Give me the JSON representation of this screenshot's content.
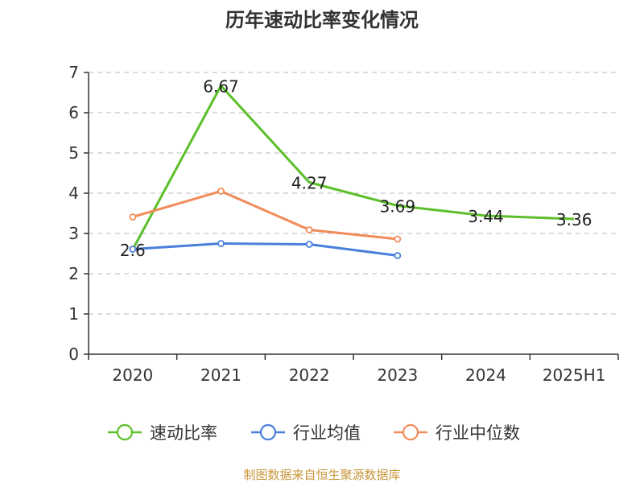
{
  "chart_data": {
    "type": "line",
    "title": "历年速动比率变化情况",
    "categories": [
      "2020",
      "2021",
      "2022",
      "2023",
      "2024",
      "2025H1"
    ],
    "ylim": [
      0,
      7
    ],
    "yticks": [
      "0",
      "1",
      "2",
      "3",
      "4",
      "5",
      "6",
      "7"
    ],
    "grid": true,
    "legend_position": "bottom",
    "series": [
      {
        "name": "速动比率",
        "color": "#5cbf2a",
        "values": [
          2.6,
          6.67,
          4.27,
          3.69,
          3.44,
          3.36
        ],
        "labels": [
          "2.6",
          "6.67",
          "4.27",
          "3.69",
          "3.44",
          "3.36"
        ]
      },
      {
        "name": "行业均值",
        "color": "#4a7fdb",
        "values": [
          2.61,
          2.75,
          2.73,
          2.45,
          null,
          null
        ]
      },
      {
        "name": "行业中位数",
        "color": "#f28c5b",
        "values": [
          3.41,
          4.05,
          3.09,
          2.86,
          null,
          null
        ]
      }
    ]
  },
  "source": "制图数据来自恒生聚源数据库"
}
